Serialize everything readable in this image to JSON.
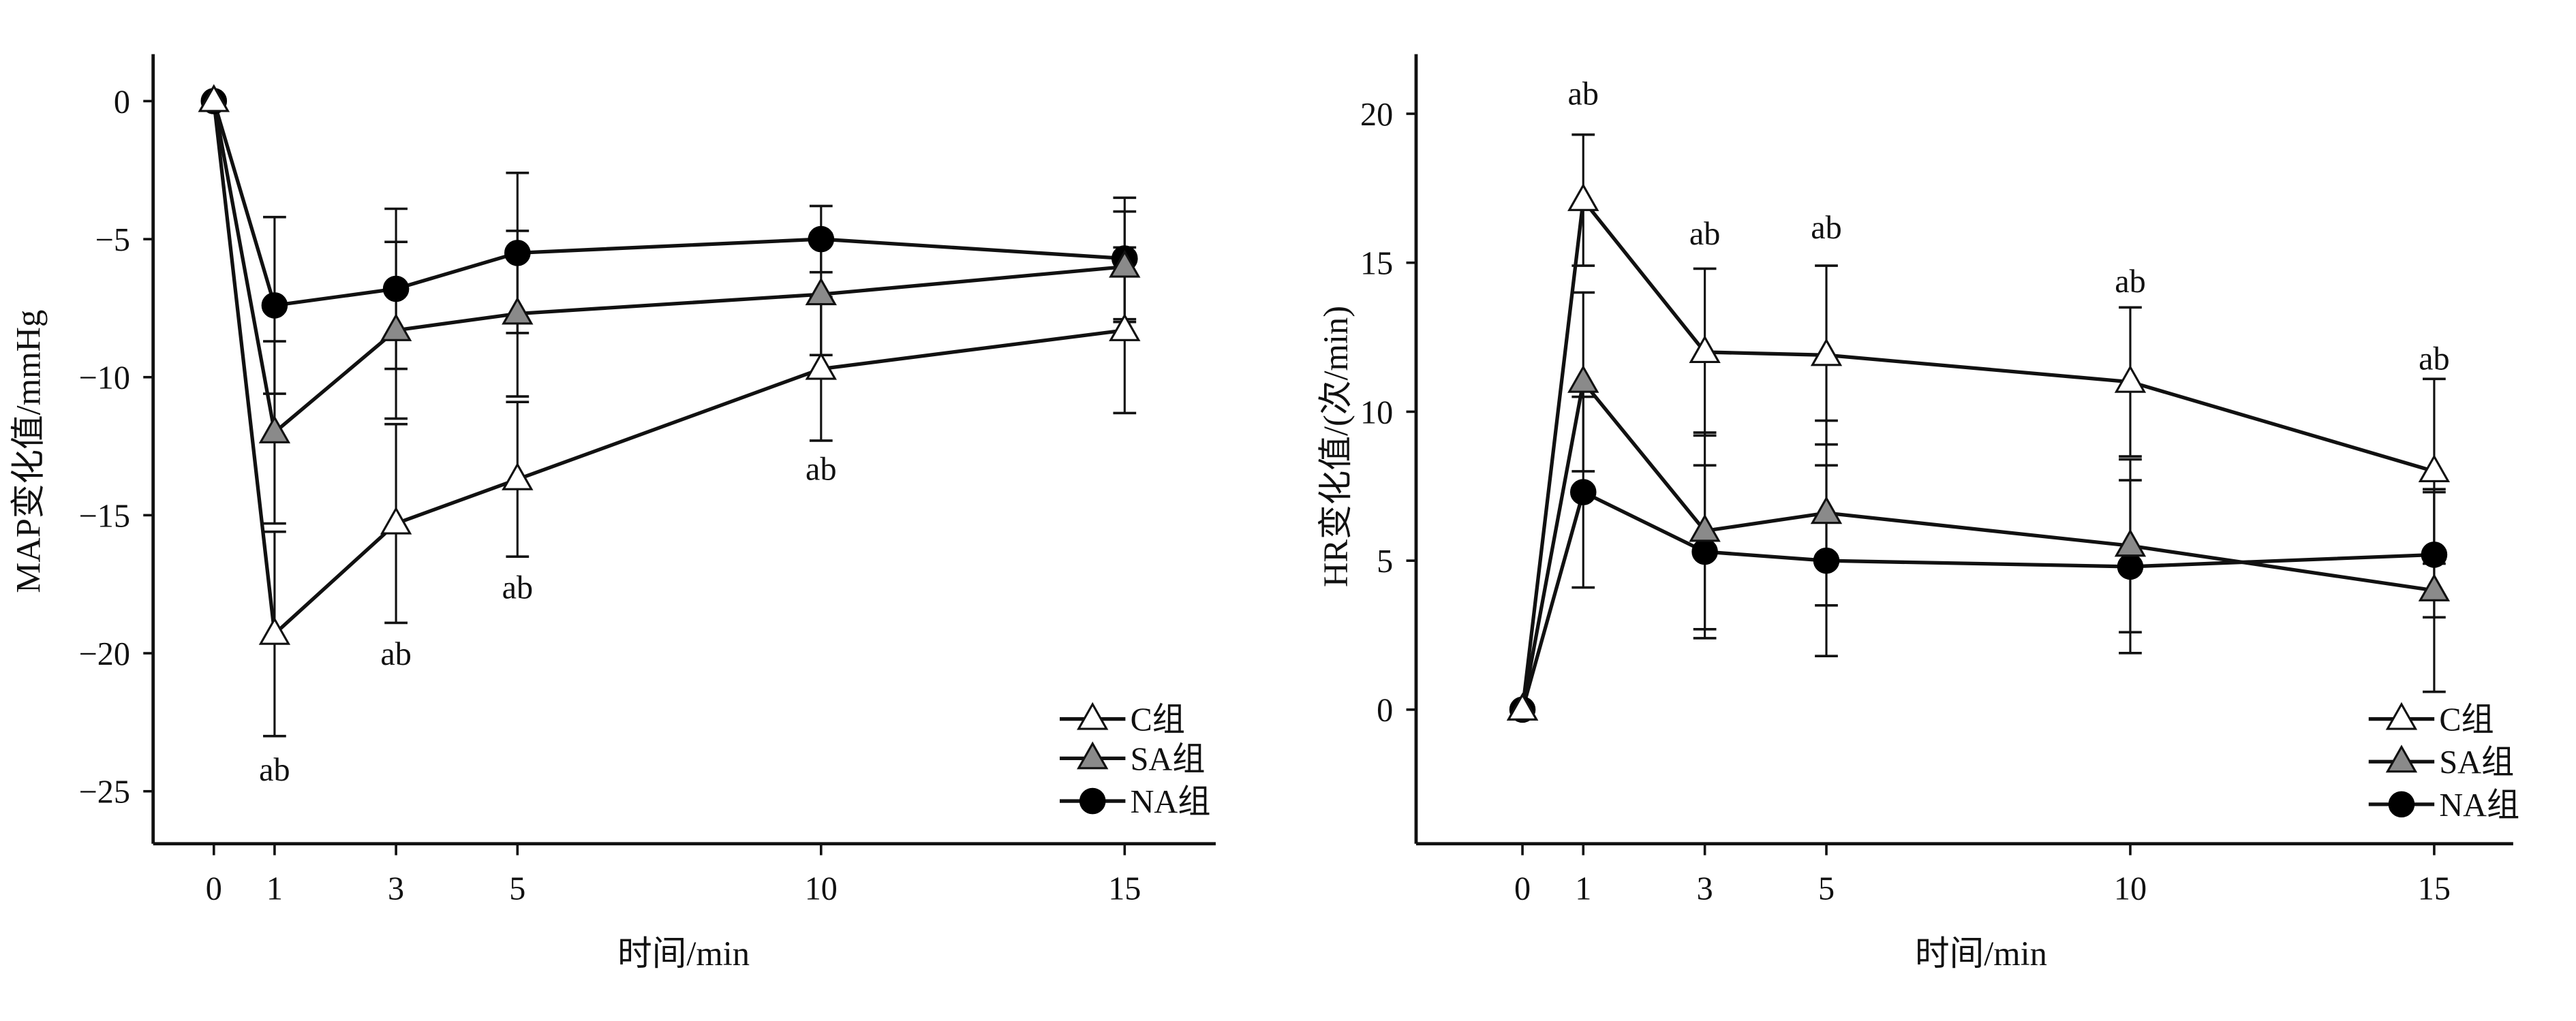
{
  "chart_data": [
    {
      "type": "line",
      "ylabel": "MAP变化值/mmHg",
      "xlabel": "时间/min",
      "x": [
        0,
        1,
        3,
        5,
        10,
        15
      ],
      "xticks": [
        "0",
        "1",
        "3",
        "5",
        "10",
        "15"
      ],
      "yticks": [
        "0",
        "−5",
        "−10",
        "−15",
        "−20",
        "−25"
      ],
      "ytick_values": [
        0,
        -5,
        -10,
        -15,
        -20,
        -25
      ],
      "xlim": [
        -1,
        16.5
      ],
      "ylim": [
        -26.9,
        1.7
      ],
      "grid": false,
      "legend_position": "bottom-right",
      "series": [
        {
          "name": "C组",
          "marker": "open-triangle",
          "color": "#ffffff",
          "values": [
            0,
            -19.3,
            -15.3,
            -13.7,
            -9.7,
            -8.3
          ],
          "error": [
            0,
            3.7,
            3.6,
            2.8,
            2.6,
            3.0
          ]
        },
        {
          "name": "SA组",
          "marker": "gray-triangle",
          "color": "#8a8a8a",
          "values": [
            0,
            -12.0,
            -8.3,
            -7.7,
            -7.0,
            -6.0
          ],
          "error": [
            0,
            3.3,
            3.2,
            3.0,
            2.2,
            2.0
          ]
        },
        {
          "name": "NA组",
          "marker": "filled-circle",
          "color": "#000000",
          "values": [
            0,
            -7.4,
            -6.8,
            -5.5,
            -5.0,
            -5.7
          ],
          "error": [
            0,
            3.2,
            2.9,
            2.9,
            1.2,
            2.2
          ]
        }
      ],
      "annotations": [
        {
          "x": 1,
          "y": -24.2,
          "text": "ab"
        },
        {
          "x": 3,
          "y": -20.0,
          "text": "ab"
        },
        {
          "x": 5,
          "y": -17.6,
          "text": "ab"
        },
        {
          "x": 10,
          "y": -13.3,
          "text": "ab"
        }
      ]
    },
    {
      "type": "line",
      "ylabel": "HR变化值/(次/min)",
      "xlabel": "时间/min",
      "x": [
        0,
        1,
        3,
        5,
        10,
        15
      ],
      "xticks": [
        "0",
        "1",
        "3",
        "5",
        "10",
        "15"
      ],
      "yticks": [
        "20",
        "15",
        "10",
        "5",
        "0"
      ],
      "ytick_values": [
        20,
        15,
        10,
        5,
        0
      ],
      "xlim": [
        -1.75,
        16.3
      ],
      "ylim": [
        -4.5,
        22
      ],
      "grid": false,
      "legend_position": "bottom-right",
      "series": [
        {
          "name": "C组",
          "marker": "open-triangle",
          "color": "#ffffff",
          "values": [
            0,
            17.1,
            12.0,
            11.9,
            11.0,
            8.0
          ],
          "error": [
            0,
            2.2,
            2.8,
            3.0,
            2.5,
            3.1
          ]
        },
        {
          "name": "SA组",
          "marker": "gray-triangle",
          "color": "#8a8a8a",
          "values": [
            0,
            11.0,
            6.0,
            6.6,
            5.5,
            4.0
          ],
          "error": [
            0,
            3.0,
            3.3,
            3.1,
            2.9,
            3.4
          ]
        },
        {
          "name": "NA组",
          "marker": "filled-circle",
          "color": "#000000",
          "values": [
            0,
            7.3,
            5.3,
            5.0,
            4.8,
            5.2
          ],
          "error": [
            0,
            3.2,
            2.9,
            3.2,
            2.9,
            2.1
          ]
        }
      ],
      "annotations": [
        {
          "x": 1,
          "y": 20.7,
          "text": "ab"
        },
        {
          "x": 3,
          "y": 16.0,
          "text": "ab"
        },
        {
          "x": 5,
          "y": 16.2,
          "text": "ab"
        },
        {
          "x": 10,
          "y": 14.4,
          "text": "ab"
        },
        {
          "x": 15,
          "y": 11.8,
          "text": "ab"
        }
      ]
    }
  ]
}
